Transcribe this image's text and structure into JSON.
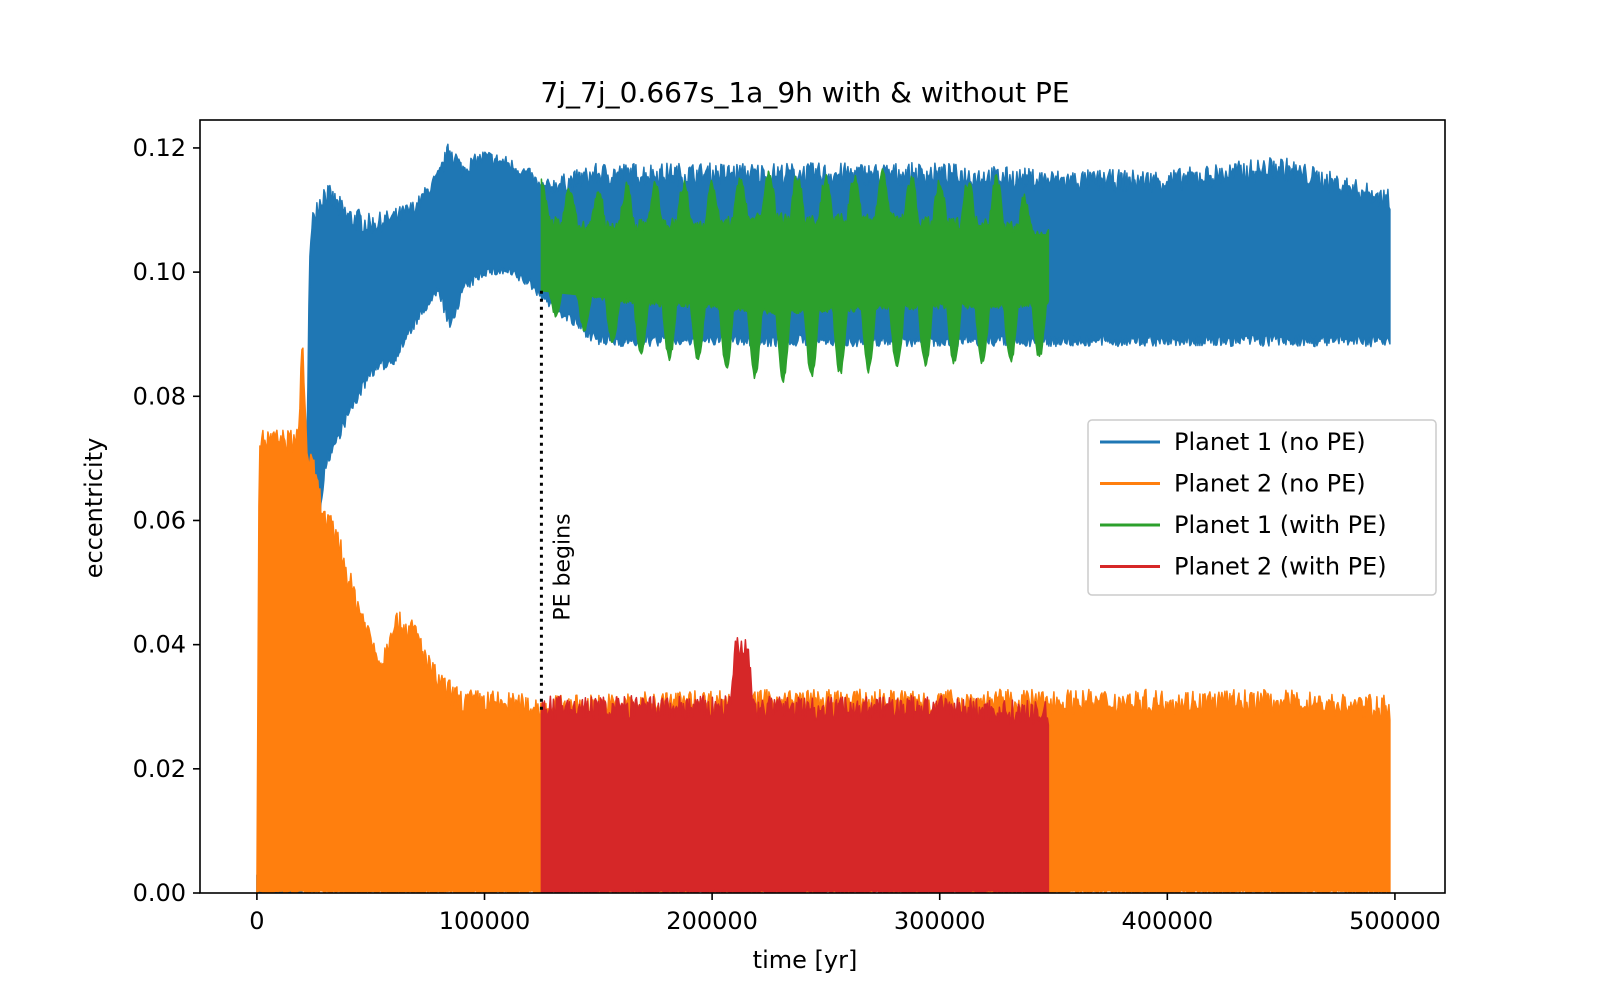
{
  "chart_data": {
    "type": "line",
    "title": "7j_7j_0.667s_1a_9h with & without PE",
    "xlabel": "time [yr]",
    "ylabel": "eccentricity",
    "xlim": [
      -25000,
      522000
    ],
    "ylim": [
      0.0,
      0.1245
    ],
    "x_ticks": [
      0,
      100000,
      200000,
      300000,
      400000,
      500000
    ],
    "x_tick_labels": [
      "0",
      "100000",
      "200000",
      "300000",
      "400000",
      "500000"
    ],
    "y_ticks": [
      0.0,
      0.02,
      0.04,
      0.06,
      0.08,
      0.1,
      0.12
    ],
    "y_tick_labels": [
      "0.00",
      "0.02",
      "0.04",
      "0.06",
      "0.08",
      "0.10",
      "0.12"
    ],
    "grid": false,
    "legend_position": "center-right",
    "series": [
      {
        "name": "Planet 1 (no PE)",
        "color": "#1f77b4",
        "kind": "envelope",
        "x": [
          0,
          20000,
          23000,
          25000,
          30000,
          40000,
          50000,
          60000,
          70000,
          80000,
          85000,
          90000,
          100000,
          110000,
          120000,
          125000,
          150000,
          200000,
          250000,
          300000,
          350000,
          400000,
          450000,
          498000
        ],
        "upper": [
          0.003,
          0.012,
          0.1,
          0.109,
          0.112,
          0.108,
          0.107,
          0.108,
          0.11,
          0.115,
          0.119,
          0.116,
          0.118,
          0.117,
          0.115,
          0.113,
          0.115,
          0.115,
          0.115,
          0.115,
          0.114,
          0.114,
          0.116,
          0.111
        ],
        "lower": [
          0.0,
          0.0,
          0.062,
          0.052,
          0.07,
          0.078,
          0.085,
          0.087,
          0.093,
          0.098,
          0.092,
          0.098,
          0.101,
          0.101,
          0.099,
          0.097,
          0.09,
          0.09,
          0.09,
          0.09,
          0.09,
          0.09,
          0.09,
          0.09
        ]
      },
      {
        "name": "Planet 2 (no PE)",
        "color": "#ff7f0e",
        "kind": "envelope",
        "x": [
          0,
          1000,
          10000,
          18000,
          20000,
          22000,
          25000,
          30000,
          35000,
          40000,
          45000,
          50000,
          55000,
          60000,
          65000,
          70000,
          75000,
          80000,
          90000,
          100000,
          125000,
          200000,
          300000,
          350000,
          400000,
          450000,
          498000
        ],
        "upper": [
          0.0,
          0.072,
          0.072,
          0.072,
          0.088,
          0.07,
          0.067,
          0.059,
          0.057,
          0.05,
          0.045,
          0.04,
          0.036,
          0.043,
          0.042,
          0.041,
          0.036,
          0.033,
          0.03,
          0.03,
          0.029,
          0.03,
          0.03,
          0.03,
          0.03,
          0.03,
          0.029
        ],
        "lower": [
          0.0,
          0.0,
          0.0,
          0.0,
          0.0,
          0.0,
          0.0,
          0.0,
          0.0,
          0.0,
          0.0,
          0.0,
          0.0,
          0.0,
          0.0,
          0.0,
          0.0,
          0.0,
          0.0,
          0.0,
          0.0,
          0.0,
          0.0,
          0.0,
          0.0,
          0.0,
          0.0
        ]
      },
      {
        "name": "Planet 1 (with PE)",
        "color": "#2ca02c",
        "kind": "beating",
        "x": [
          125000,
          150000,
          175000,
          200000,
          225000,
          250000,
          275000,
          300000,
          325000,
          348000
        ],
        "upper": [
          0.114,
          0.113,
          0.114,
          0.114,
          0.116,
          0.115,
          0.116,
          0.114,
          0.115,
          0.109
        ],
        "lower": [
          0.095,
          0.09,
          0.087,
          0.086,
          0.083,
          0.084,
          0.085,
          0.086,
          0.086,
          0.087
        ],
        "mean": [
          0.101,
          0.1,
          0.1,
          0.1,
          0.1,
          0.1,
          0.1,
          0.1,
          0.1,
          0.1
        ]
      },
      {
        "name": "Planet 2 (with PE)",
        "color": "#d62728",
        "kind": "envelope",
        "x": [
          125000,
          208000,
          210000,
          213000,
          216000,
          218000,
          220000,
          300000,
          348000
        ],
        "upper": [
          0.029,
          0.029,
          0.038,
          0.039,
          0.038,
          0.029,
          0.029,
          0.029,
          0.028
        ],
        "lower": [
          0.0,
          0.0,
          0.0,
          0.0,
          0.0,
          0.0,
          0.0,
          0.0,
          0.0
        ]
      }
    ],
    "annotations": [
      {
        "text": "PE begins",
        "x": 125000,
        "y_from": 0.029,
        "y_to": 0.097,
        "style": "dotted vertical line"
      }
    ]
  }
}
